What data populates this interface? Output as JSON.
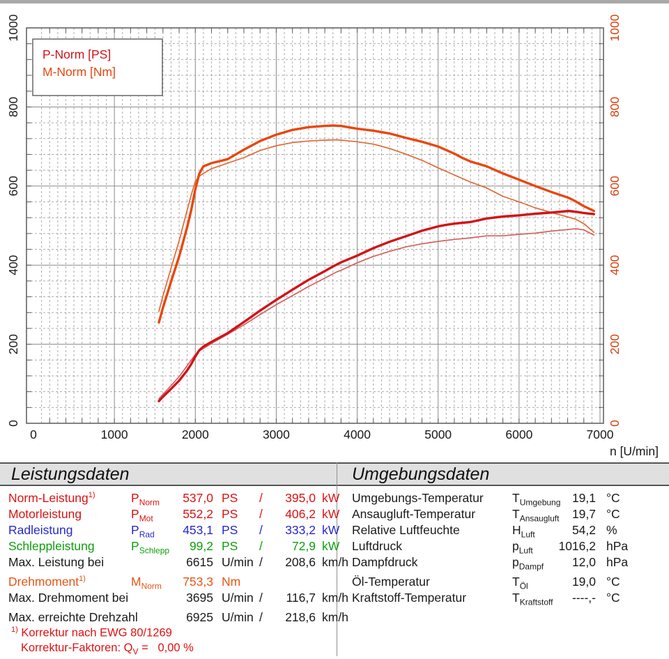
{
  "chart_data": {
    "type": "line",
    "xlabel": "n [U/min]",
    "xlim": [
      0,
      7000
    ],
    "ylim": [
      0,
      1000
    ],
    "x_ticks": [
      0,
      1000,
      2000,
      3000,
      4000,
      5000,
      6000,
      7000
    ],
    "y_ticks": [
      0,
      200,
      400,
      600,
      800,
      1000
    ],
    "x_major_step": 1000,
    "x_minor_step": 100,
    "y_major_step": 200,
    "y_minor_step": 40,
    "grid": true,
    "axis_colors": {
      "left": "#1a1a1a",
      "right": "#d5400f"
    },
    "legend": [
      {
        "label": "P-Norm [PS]",
        "color": "#d01419"
      },
      {
        "label": "M-Norm [Nm]",
        "color": "#e8470d"
      }
    ],
    "series": [
      {
        "name": "M-Norm [Nm]",
        "key": "m-norm-curve",
        "color": "#e8470d",
        "width": 3.4,
        "points": [
          [
            1550,
            255
          ],
          [
            1600,
            292
          ],
          [
            1700,
            358
          ],
          [
            1800,
            422
          ],
          [
            1900,
            497
          ],
          [
            1950,
            540
          ],
          [
            2000,
            592
          ],
          [
            2050,
            632
          ],
          [
            2100,
            650
          ],
          [
            2200,
            658
          ],
          [
            2300,
            663
          ],
          [
            2400,
            668
          ],
          [
            2600,
            692
          ],
          [
            2800,
            714
          ],
          [
            3000,
            730
          ],
          [
            3200,
            742
          ],
          [
            3400,
            749
          ],
          [
            3600,
            752
          ],
          [
            3695,
            753
          ],
          [
            3800,
            752
          ],
          [
            4000,
            745
          ],
          [
            4200,
            740
          ],
          [
            4400,
            733
          ],
          [
            4600,
            722
          ],
          [
            4800,
            712
          ],
          [
            5000,
            700
          ],
          [
            5100,
            691
          ],
          [
            5200,
            682
          ],
          [
            5300,
            671
          ],
          [
            5400,
            662
          ],
          [
            5600,
            650
          ],
          [
            5800,
            632
          ],
          [
            6000,
            616
          ],
          [
            6200,
            600
          ],
          [
            6400,
            585
          ],
          [
            6615,
            570
          ],
          [
            6700,
            561
          ],
          [
            6800,
            549
          ],
          [
            6925,
            537
          ]
        ]
      },
      {
        "name": "M second run",
        "key": "m-run2-curve",
        "color": "#df6a35",
        "width": 1.7,
        "points": [
          [
            1550,
            283
          ],
          [
            1600,
            322
          ],
          [
            1700,
            392
          ],
          [
            1800,
            462
          ],
          [
            1900,
            540
          ],
          [
            1950,
            578
          ],
          [
            2000,
            612
          ],
          [
            2050,
            625
          ],
          [
            2100,
            632
          ],
          [
            2200,
            644
          ],
          [
            2400,
            658
          ],
          [
            2600,
            672
          ],
          [
            2800,
            690
          ],
          [
            3000,
            702
          ],
          [
            3200,
            710
          ],
          [
            3400,
            714
          ],
          [
            3600,
            716
          ],
          [
            3750,
            717
          ],
          [
            3800,
            716
          ],
          [
            4000,
            712
          ],
          [
            4200,
            706
          ],
          [
            4400,
            695
          ],
          [
            4600,
            681
          ],
          [
            4800,
            665
          ],
          [
            5000,
            646
          ],
          [
            5200,
            628
          ],
          [
            5400,
            610
          ],
          [
            5600,
            595
          ],
          [
            5800,
            574
          ],
          [
            6000,
            560
          ],
          [
            6200,
            545
          ],
          [
            6400,
            533
          ],
          [
            6600,
            522
          ],
          [
            6700,
            516
          ],
          [
            6800,
            505
          ],
          [
            6925,
            483
          ]
        ]
      },
      {
        "name": "P-Norm [PS]",
        "key": "p-norm-curve",
        "color": "#d01419",
        "width": 3.4,
        "points": [
          [
            1550,
            56
          ],
          [
            1600,
            67
          ],
          [
            1700,
            87
          ],
          [
            1800,
            108
          ],
          [
            1900,
            134
          ],
          [
            1950,
            150
          ],
          [
            2000,
            169
          ],
          [
            2050,
            185
          ],
          [
            2100,
            194
          ],
          [
            2200,
            206
          ],
          [
            2300,
            217
          ],
          [
            2400,
            228
          ],
          [
            2600,
            256
          ],
          [
            2800,
            285
          ],
          [
            3000,
            312
          ],
          [
            3200,
            338
          ],
          [
            3400,
            363
          ],
          [
            3600,
            385
          ],
          [
            3695,
            396
          ],
          [
            3800,
            407
          ],
          [
            4000,
            424
          ],
          [
            4200,
            443
          ],
          [
            4400,
            459
          ],
          [
            4600,
            473
          ],
          [
            4800,
            487
          ],
          [
            5000,
            498
          ],
          [
            5100,
            502
          ],
          [
            5200,
            505
          ],
          [
            5300,
            507
          ],
          [
            5400,
            509
          ],
          [
            5600,
            518
          ],
          [
            5800,
            523
          ],
          [
            6000,
            526
          ],
          [
            6200,
            530
          ],
          [
            6400,
            533
          ],
          [
            6615,
            537
          ],
          [
            6700,
            535
          ],
          [
            6800,
            532
          ],
          [
            6925,
            529
          ]
        ]
      },
      {
        "name": "P second run",
        "key": "p-run2-curve",
        "color": "#d4605c",
        "width": 1.7,
        "points": [
          [
            1550,
            62
          ],
          [
            1600,
            73
          ],
          [
            1700,
            95
          ],
          [
            1800,
            118
          ],
          [
            1900,
            146
          ],
          [
            1950,
            160
          ],
          [
            2000,
            174
          ],
          [
            2050,
            183
          ],
          [
            2100,
            189
          ],
          [
            2200,
            202
          ],
          [
            2400,
            225
          ],
          [
            2600,
            249
          ],
          [
            2800,
            275
          ],
          [
            3000,
            300
          ],
          [
            3200,
            323
          ],
          [
            3400,
            346
          ],
          [
            3600,
            367
          ],
          [
            3750,
            383
          ],
          [
            3800,
            387
          ],
          [
            4000,
            406
          ],
          [
            4200,
            422
          ],
          [
            4400,
            435
          ],
          [
            4600,
            446
          ],
          [
            4800,
            454
          ],
          [
            5000,
            460
          ],
          [
            5200,
            465
          ],
          [
            5400,
            469
          ],
          [
            5600,
            474
          ],
          [
            5800,
            474
          ],
          [
            6000,
            478
          ],
          [
            6200,
            481
          ],
          [
            6400,
            486
          ],
          [
            6600,
            490
          ],
          [
            6700,
            492
          ],
          [
            6800,
            489
          ],
          [
            6925,
            476
          ]
        ]
      }
    ]
  },
  "leistungsdaten": {
    "title": "Leistungsdaten",
    "slash": "/",
    "rows": [
      {
        "label": "Norm-Leistung",
        "sup": "1)",
        "sym": {
          "main": "P",
          "sub": "Norm"
        },
        "v1": "537,0",
        "u1": "PS",
        "v2": "395,0",
        "u2": "kW",
        "color": "#e01212"
      },
      {
        "label": "Motorleistung",
        "sym": {
          "main": "P",
          "sub": "Mot"
        },
        "v1": "552,2",
        "u1": "PS",
        "v2": "406,2",
        "u2": "kW",
        "color": "#d81414"
      },
      {
        "label": "Radleistung",
        "sym": {
          "main": "P",
          "sub": "Rad"
        },
        "v1": "453,1",
        "u1": "PS",
        "v2": "333,2",
        "u2": "kW",
        "color": "#2727cf"
      },
      {
        "label": "Schleppleistung",
        "sym": {
          "main": "P",
          "sub": "Schlepp"
        },
        "v1": "99,2",
        "u1": "PS",
        "v2": "72,9",
        "u2": "kW",
        "color": "#0da00d"
      },
      {
        "label": "Max. Leistung bei",
        "v1": "6615",
        "u1": "U/min",
        "v2": "208,6",
        "u2": "km/h",
        "color": "#1a1a1a"
      },
      {
        "label": "Drehmoment",
        "sup": "1)",
        "sym": {
          "main": "M",
          "sub": "Norm"
        },
        "v1": "753,3",
        "u1": "Nm",
        "color": "#e45513",
        "gap": true
      },
      {
        "label": "Max. Drehmoment bei",
        "v1": "3695",
        "u1": "U/min",
        "v2": "116,7",
        "u2": "km/h",
        "color": "#1a1a1a"
      },
      {
        "label": "Max. erreichte Drehzahl",
        "v1": "6925",
        "u1": "U/min",
        "v2": "218,6",
        "u2": "km/h",
        "color": "#1a1a1a",
        "gap": true
      }
    ],
    "footnote": {
      "color": "#e01212",
      "sup": "1)",
      "line1": " Korrektur nach EWG 80/1269",
      "line2_pre": "Korrektur-Faktoren: Q",
      "line2_sub": "V",
      "line2_post": " =   0,00 %"
    }
  },
  "umgebungsdaten": {
    "title": "Umgebungsdaten",
    "rows": [
      {
        "label": "Umgebungs-Temperatur",
        "sym": {
          "main": "T",
          "sub": "Umgebung"
        },
        "v1": "19,1",
        "u1": "°C"
      },
      {
        "label": "Ansaugluft-Temperatur",
        "sym": {
          "main": "T",
          "sub": "Ansaugluft"
        },
        "v1": "19,7",
        "u1": "°C"
      },
      {
        "label": "Relative Luftfeuchte",
        "sym": {
          "main": "H",
          "sub": "Luft"
        },
        "v1": "54,2",
        "u1": "%"
      },
      {
        "label": "Luftdruck",
        "sym": {
          "main": "p",
          "sub": "Luft"
        },
        "v1": "1016,2",
        "u1": "hPa"
      },
      {
        "label": "Dampfdruck",
        "sym": {
          "main": "p",
          "sub": "Dampf"
        },
        "v1": "12,0",
        "u1": "hPa"
      },
      {
        "label": "Öl-Temperatur",
        "sym": {
          "main": "T",
          "sub": "Öl"
        },
        "v1": "19,0",
        "u1": "°C",
        "gap": true
      },
      {
        "label": "Kraftstoff-Temperatur",
        "sym": {
          "main": "T",
          "sub": "Kraftstoff"
        },
        "v1": "----,-",
        "u1": "°C"
      }
    ]
  }
}
